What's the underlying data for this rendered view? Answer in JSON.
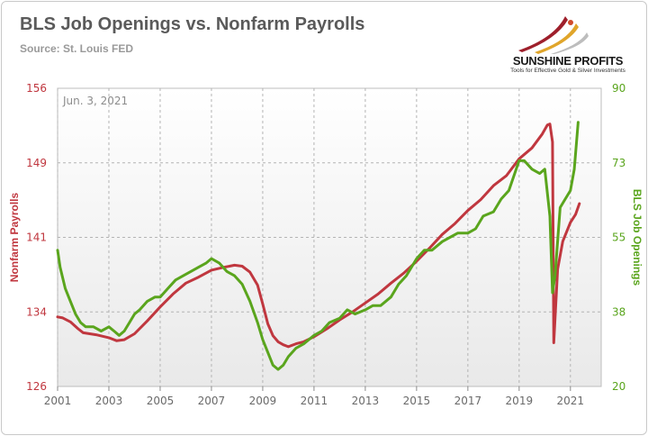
{
  "header": {
    "title": "BLS Job Openings vs. Nonfarm Payrolls",
    "source": "Source: St. Louis FED"
  },
  "logo": {
    "name": "SUNSHINE PROFITS",
    "tagline": "Tools for Effective Gold & Silver Investments"
  },
  "colors": {
    "payrolls": "#c0373f",
    "openings": "#5aa51d",
    "grid": "#b4b4b4",
    "plot_bg_top": "#ffffff",
    "plot_bg_bottom": "#e9e9e9"
  },
  "chart_data": {
    "type": "line",
    "annotation": "Jun. 3, 2021",
    "x_ticks": [
      "2001",
      "2003",
      "2005",
      "2007",
      "2009",
      "2011",
      "2013",
      "2015",
      "2017",
      "2019",
      "2021"
    ],
    "xlim": [
      2001,
      2022.2
    ],
    "left_axis": {
      "label": "Nonfarm Payrolls",
      "ticks": [
        "126",
        "134",
        "141",
        "149",
        "156"
      ],
      "ylim": [
        126,
        156
      ]
    },
    "right_axis": {
      "label": "BLS Job Openings",
      "ticks": [
        "20",
        "38",
        "55",
        "73",
        "90"
      ],
      "ylim": [
        20,
        90
      ]
    },
    "grid": true,
    "series": [
      {
        "name": "Nonfarm Payrolls",
        "axis": "left",
        "x": [
          2001.0,
          2001.2,
          2001.5,
          2001.8,
          2002.0,
          2002.5,
          2003.0,
          2003.3,
          2003.6,
          2004.0,
          2004.5,
          2005.0,
          2005.5,
          2006.0,
          2006.5,
          2007.0,
          2007.5,
          2007.9,
          2008.2,
          2008.5,
          2008.8,
          2009.0,
          2009.2,
          2009.4,
          2009.6,
          2009.8,
          2010.0,
          2010.3,
          2010.6,
          2011.0,
          2011.5,
          2012.0,
          2012.5,
          2013.0,
          2013.5,
          2014.0,
          2014.5,
          2015.0,
          2015.5,
          2016.0,
          2016.5,
          2017.0,
          2017.5,
          2018.0,
          2018.5,
          2019.0,
          2019.5,
          2019.9,
          2020.1,
          2020.2,
          2020.3,
          2020.35,
          2020.5,
          2020.7,
          2021.0,
          2021.2,
          2021.35
        ],
        "values": [
          133.0,
          132.9,
          132.5,
          131.8,
          131.4,
          131.2,
          130.9,
          130.6,
          130.7,
          131.3,
          132.6,
          134.0,
          135.3,
          136.4,
          137.0,
          137.7,
          138.0,
          138.2,
          138.1,
          137.5,
          136.2,
          134.3,
          132.3,
          131.1,
          130.5,
          130.2,
          130.0,
          130.3,
          130.5,
          131.0,
          131.8,
          132.7,
          133.5,
          134.4,
          135.3,
          136.4,
          137.4,
          138.6,
          139.9,
          141.3,
          142.4,
          143.7,
          144.8,
          146.2,
          147.2,
          148.9,
          150.0,
          151.4,
          152.3,
          152.4,
          150.6,
          130.4,
          137.8,
          140.6,
          142.5,
          143.3,
          144.4
        ]
      },
      {
        "name": "BLS Job Openings",
        "axis": "right",
        "x": [
          2001.0,
          2001.1,
          2001.3,
          2001.5,
          2001.7,
          2001.9,
          2002.1,
          2002.4,
          2002.7,
          2003.0,
          2003.2,
          2003.4,
          2003.6,
          2003.8,
          2004.0,
          2004.2,
          2004.5,
          2004.8,
          2005.0,
          2005.3,
          2005.6,
          2005.9,
          2006.2,
          2006.5,
          2006.8,
          2007.0,
          2007.3,
          2007.6,
          2007.9,
          2008.2,
          2008.5,
          2008.8,
          2009.0,
          2009.2,
          2009.4,
          2009.6,
          2009.8,
          2010.0,
          2010.3,
          2010.6,
          2011.0,
          2011.3,
          2011.6,
          2012.0,
          2012.3,
          2012.6,
          2013.0,
          2013.3,
          2013.6,
          2014.0,
          2014.3,
          2014.6,
          2015.0,
          2015.3,
          2015.6,
          2016.0,
          2016.3,
          2016.6,
          2017.0,
          2017.3,
          2017.6,
          2018.0,
          2018.3,
          2018.6,
          2019.0,
          2019.2,
          2019.5,
          2019.8,
          2020.0,
          2020.2,
          2020.3,
          2020.4,
          2020.6,
          2020.8,
          2021.0,
          2021.15,
          2021.3
        ],
        "values": [
          52,
          48,
          43,
          40,
          37,
          35,
          34,
          34,
          33,
          34,
          33,
          32,
          33,
          35,
          37,
          38,
          40,
          41,
          41,
          43,
          45,
          46,
          47,
          48,
          49,
          50,
          49,
          47,
          46,
          44,
          40,
          35,
          31,
          28,
          25,
          24,
          25,
          27,
          29,
          30,
          32,
          33,
          35,
          36,
          38,
          37,
          38,
          39,
          39,
          41,
          44,
          46,
          50,
          52,
          52,
          54,
          55,
          56,
          56,
          57,
          60,
          61,
          64,
          66,
          73,
          73,
          71,
          70,
          71,
          60,
          42,
          46,
          62,
          64,
          66,
          71,
          82
        ]
      }
    ]
  }
}
